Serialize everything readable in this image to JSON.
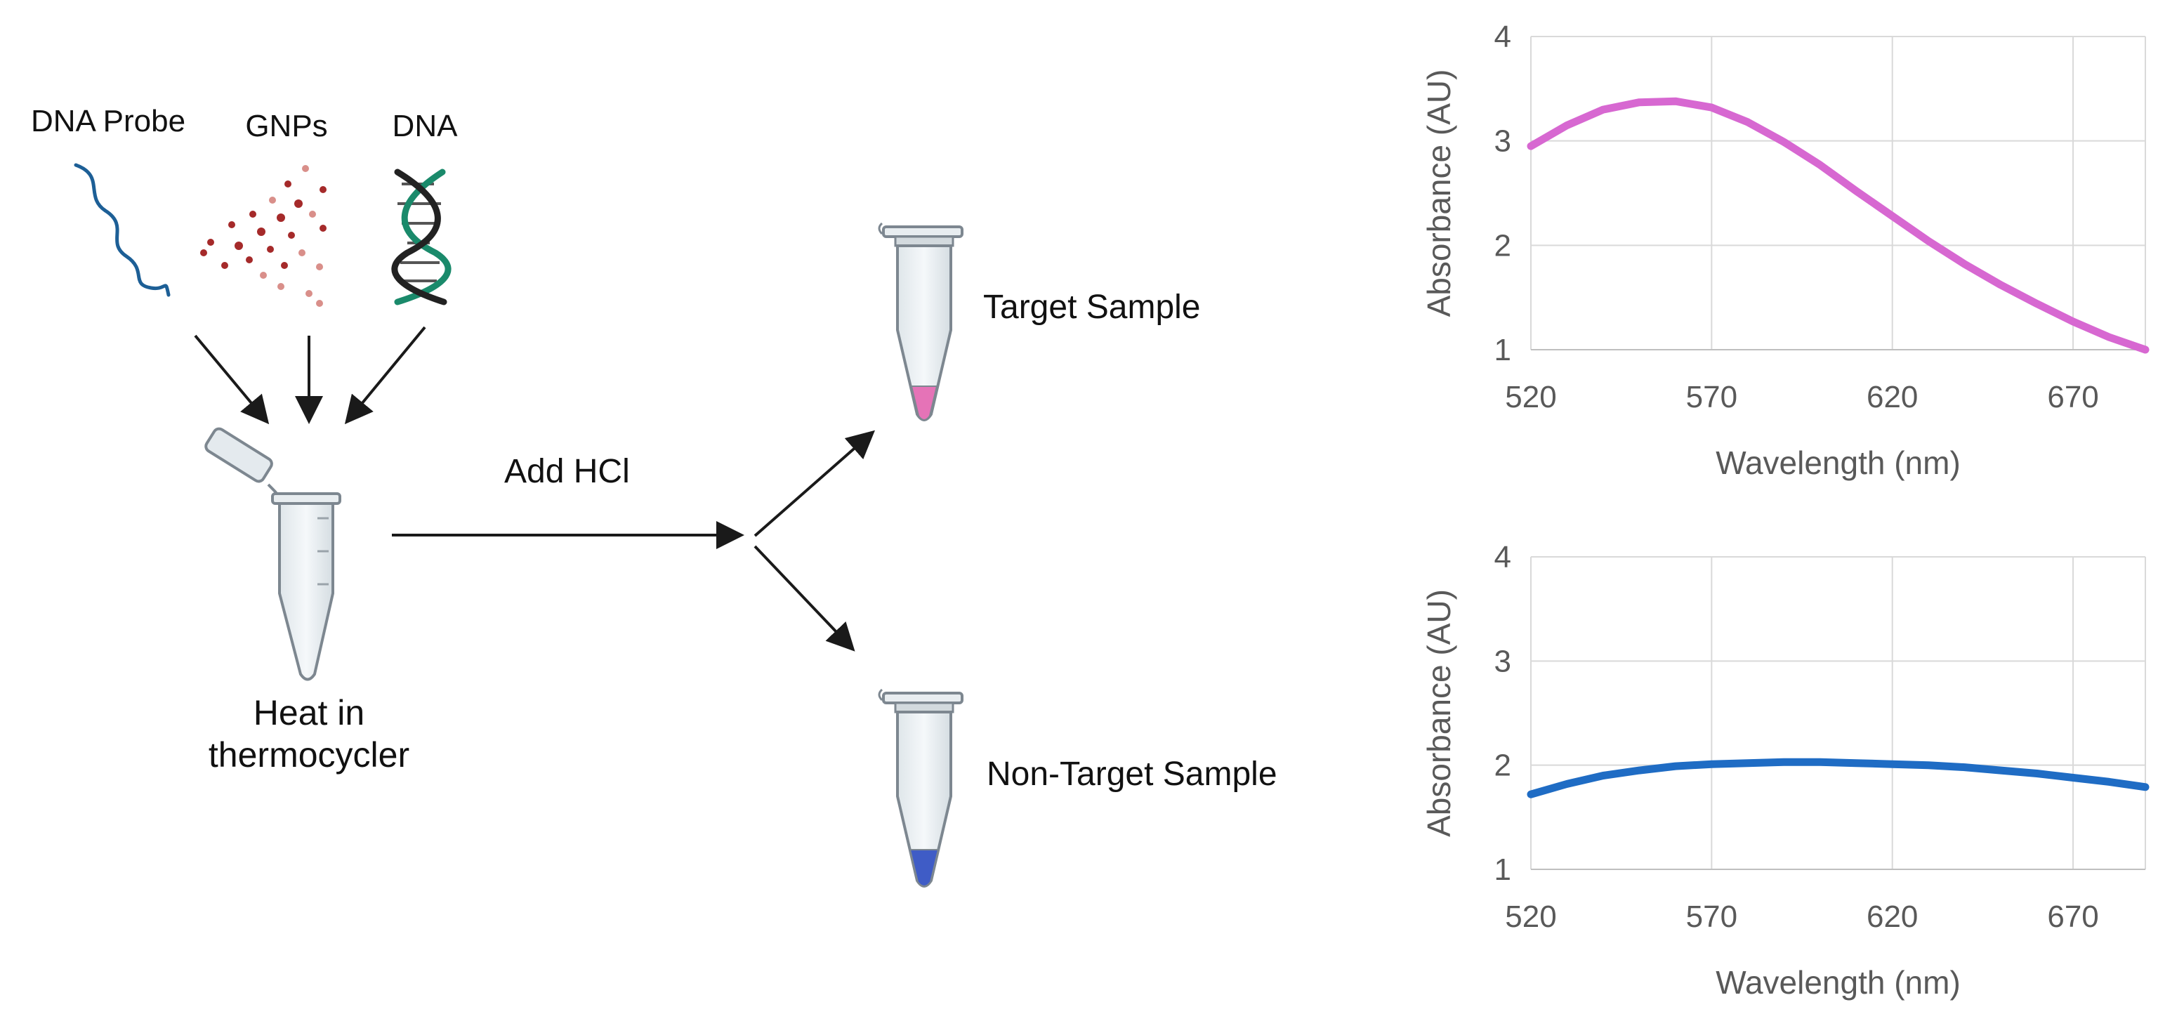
{
  "diagram": {
    "reagents": [
      {
        "label": "DNA Probe",
        "icon": "dna-probe-strand-icon"
      },
      {
        "label": "GNPs",
        "icon": "gold-nanoparticles-icon"
      },
      {
        "label": "DNA",
        "icon": "double-helix-icon"
      }
    ],
    "step_heat": {
      "line1": "Heat in",
      "line2": "thermocycler",
      "icon": "microcentrifuge-tube-open-icon"
    },
    "step_acid": {
      "label": "Add HCl"
    },
    "outcomes": [
      {
        "label": "Target Sample",
        "liquid_color": "#e573b7",
        "icon": "tube-pink-icon"
      },
      {
        "label": "Non-Target Sample",
        "liquid_color": "#3f5cc6",
        "icon": "tube-blue-icon"
      }
    ],
    "colors": {
      "probe": "#1d5f96",
      "nanoparticle": "#a52a2a",
      "helix_green": "#1a8a6b",
      "helix_dark": "#222222",
      "arrow": "#1a1a1a"
    }
  },
  "chart_data": [
    {
      "type": "line",
      "xlabel": "Wavelength (nm)",
      "ylabel": "Absorbance (AU)",
      "xlim": [
        520,
        690
      ],
      "ylim": [
        1,
        4
      ],
      "xticks": [
        520,
        570,
        620,
        670
      ],
      "yticks": [
        1,
        2,
        3,
        4
      ],
      "grid": true,
      "series": [
        {
          "color": "#d768d1",
          "x": [
            520,
            530,
            540,
            550,
            560,
            570,
            580,
            590,
            600,
            610,
            620,
            630,
            640,
            650,
            660,
            670,
            680,
            690
          ],
          "y": [
            2.95,
            3.15,
            3.3,
            3.37,
            3.38,
            3.32,
            3.18,
            2.99,
            2.77,
            2.52,
            2.28,
            2.04,
            1.82,
            1.62,
            1.44,
            1.27,
            1.12,
            1.0
          ]
        }
      ]
    },
    {
      "type": "line",
      "xlabel": "Wavelength (nm)",
      "ylabel": "Absorbance (AU)",
      "xlim": [
        520,
        690
      ],
      "ylim": [
        1,
        4
      ],
      "xticks": [
        520,
        570,
        620,
        670
      ],
      "yticks": [
        1,
        2,
        3,
        4
      ],
      "grid": true,
      "series": [
        {
          "color": "#1f6cc4",
          "x": [
            520,
            530,
            540,
            550,
            560,
            570,
            580,
            590,
            600,
            610,
            620,
            630,
            640,
            650,
            660,
            670,
            680,
            690
          ],
          "y": [
            1.72,
            1.82,
            1.9,
            1.95,
            1.99,
            2.01,
            2.02,
            2.03,
            2.03,
            2.02,
            2.01,
            2.0,
            1.98,
            1.95,
            1.92,
            1.88,
            1.84,
            1.79
          ]
        }
      ]
    }
  ]
}
